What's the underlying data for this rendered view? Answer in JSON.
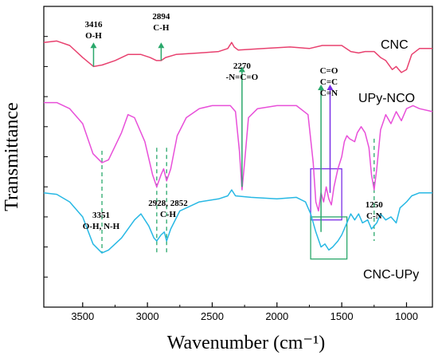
{
  "chart_data": {
    "type": "line",
    "title": "",
    "xlabel": "Wavenumber (cm⁻¹)",
    "ylabel": "Transmittance",
    "xlim": [
      3800,
      800
    ],
    "x_ticks": [
      3500,
      3000,
      2500,
      2000,
      1500,
      1000
    ],
    "ylim": [
      0,
      100
    ],
    "y_ticks_shown": false,
    "grid": false,
    "series": [
      {
        "name": "CNC",
        "color": "#e8416f",
        "points": [
          [
            3800,
            88
          ],
          [
            3700,
            88.5
          ],
          [
            3600,
            87
          ],
          [
            3500,
            83
          ],
          [
            3416,
            80
          ],
          [
            3350,
            80.5
          ],
          [
            3250,
            82
          ],
          [
            3150,
            84
          ],
          [
            3050,
            84
          ],
          [
            2980,
            83
          ],
          [
            2930,
            82
          ],
          [
            2894,
            82
          ],
          [
            2860,
            83
          ],
          [
            2780,
            84
          ],
          [
            2600,
            84.5
          ],
          [
            2450,
            85
          ],
          [
            2380,
            86
          ],
          [
            2350,
            88
          ],
          [
            2330,
            86.5
          ],
          [
            2300,
            85.5
          ],
          [
            2100,
            86
          ],
          [
            1900,
            86.5
          ],
          [
            1750,
            86
          ],
          [
            1650,
            87
          ],
          [
            1500,
            87
          ],
          [
            1430,
            85
          ],
          [
            1370,
            84.5
          ],
          [
            1320,
            85
          ],
          [
            1250,
            85
          ],
          [
            1200,
            83
          ],
          [
            1160,
            82
          ],
          [
            1110,
            79
          ],
          [
            1080,
            80
          ],
          [
            1040,
            78
          ],
          [
            1000,
            79
          ],
          [
            960,
            84
          ],
          [
            900,
            86
          ],
          [
            800,
            86
          ]
        ]
      },
      {
        "name": "UPy-NCO",
        "color": "#e84fd9",
        "points": [
          [
            3800,
            68
          ],
          [
            3700,
            68
          ],
          [
            3600,
            66
          ],
          [
            3500,
            61
          ],
          [
            3420,
            51
          ],
          [
            3351,
            48
          ],
          [
            3300,
            49
          ],
          [
            3200,
            58
          ],
          [
            3150,
            64
          ],
          [
            3100,
            63
          ],
          [
            3020,
            55
          ],
          [
            2960,
            44
          ],
          [
            2928,
            40
          ],
          [
            2895,
            44
          ],
          [
            2875,
            46
          ],
          [
            2852,
            42
          ],
          [
            2820,
            46
          ],
          [
            2770,
            57
          ],
          [
            2700,
            63
          ],
          [
            2600,
            66
          ],
          [
            2500,
            67
          ],
          [
            2420,
            67
          ],
          [
            2360,
            67
          ],
          [
            2320,
            65
          ],
          [
            2290,
            52
          ],
          [
            2270,
            39
          ],
          [
            2250,
            48
          ],
          [
            2220,
            63
          ],
          [
            2150,
            66
          ],
          [
            2000,
            67
          ],
          [
            1850,
            67
          ],
          [
            1760,
            64
          ],
          [
            1720,
            48
          ],
          [
            1700,
            35
          ],
          [
            1680,
            32
          ],
          [
            1660,
            38
          ],
          [
            1640,
            35
          ],
          [
            1620,
            40
          ],
          [
            1600,
            36
          ],
          [
            1580,
            34
          ],
          [
            1560,
            40
          ],
          [
            1530,
            46
          ],
          [
            1500,
            50
          ],
          [
            1480,
            55
          ],
          [
            1460,
            57
          ],
          [
            1440,
            56
          ],
          [
            1400,
            55
          ],
          [
            1380,
            58
          ],
          [
            1350,
            60
          ],
          [
            1320,
            58
          ],
          [
            1290,
            53
          ],
          [
            1270,
            44
          ],
          [
            1250,
            39
          ],
          [
            1230,
            46
          ],
          [
            1200,
            59
          ],
          [
            1160,
            64
          ],
          [
            1120,
            61
          ],
          [
            1080,
            65
          ],
          [
            1040,
            62
          ],
          [
            1000,
            66
          ],
          [
            950,
            67
          ],
          [
            900,
            66
          ],
          [
            800,
            65
          ]
        ]
      },
      {
        "name": "CNC-UPy",
        "color": "#27b8e4",
        "points": [
          [
            3800,
            38
          ],
          [
            3700,
            37.5
          ],
          [
            3600,
            35
          ],
          [
            3500,
            30
          ],
          [
            3420,
            21
          ],
          [
            3351,
            18
          ],
          [
            3300,
            19
          ],
          [
            3200,
            23
          ],
          [
            3100,
            29
          ],
          [
            3050,
            31
          ],
          [
            2990,
            27
          ],
          [
            2950,
            23
          ],
          [
            2928,
            22
          ],
          [
            2895,
            24
          ],
          [
            2870,
            25
          ],
          [
            2852,
            22
          ],
          [
            2820,
            26
          ],
          [
            2750,
            32
          ],
          [
            2600,
            35
          ],
          [
            2450,
            36
          ],
          [
            2380,
            37
          ],
          [
            2350,
            39
          ],
          [
            2320,
            37
          ],
          [
            2200,
            36.5
          ],
          [
            2000,
            36
          ],
          [
            1850,
            36.5
          ],
          [
            1780,
            35
          ],
          [
            1740,
            31
          ],
          [
            1700,
            25
          ],
          [
            1660,
            20
          ],
          [
            1630,
            21
          ],
          [
            1600,
            19
          ],
          [
            1570,
            20
          ],
          [
            1530,
            22
          ],
          [
            1500,
            24
          ],
          [
            1460,
            28
          ],
          [
            1430,
            31
          ],
          [
            1400,
            29
          ],
          [
            1370,
            31
          ],
          [
            1340,
            28
          ],
          [
            1300,
            29
          ],
          [
            1270,
            26
          ],
          [
            1250,
            27
          ],
          [
            1230,
            28
          ],
          [
            1200,
            31
          ],
          [
            1160,
            29
          ],
          [
            1120,
            30
          ],
          [
            1080,
            28
          ],
          [
            1050,
            33
          ],
          [
            1000,
            35
          ],
          [
            960,
            37
          ],
          [
            900,
            38
          ],
          [
            800,
            38
          ]
        ]
      }
    ],
    "annotations": [
      {
        "id": "cnc-3416",
        "lines": [
          "3416",
          "O-H"
        ],
        "x": 3416,
        "arrow_from": 80,
        "arrow_to": 88,
        "style": "arrow",
        "color": "#2aa86b"
      },
      {
        "id": "cnc-2894",
        "lines": [
          "2894",
          "C-H"
        ],
        "x": 2894,
        "arrow_from": 82,
        "arrow_to": 88,
        "style": "arrow",
        "color": "#2aa86b"
      },
      {
        "id": "nco-2270",
        "lines": [
          "2270",
          "-N=C=O"
        ],
        "x": 2270,
        "arrow_from": 40,
        "arrow_to": 80,
        "style": "arrow",
        "color": "#2aa86b"
      },
      {
        "id": "co-arrow",
        "lines": [
          "C=O",
          "C=C",
          "C=N"
        ],
        "x": 1660,
        "arrow_from": 25,
        "arrow_to": 74,
        "style": "arrow",
        "color": "#2aa86b"
      },
      {
        "id": "cn-arrow",
        "lines": [],
        "x": 1590,
        "arrow_from": 38,
        "arrow_to": 74,
        "style": "arrow",
        "color": "#7a2ee6"
      },
      {
        "id": "oh-nh-3351",
        "lines": [
          "3351",
          "O-H, N-H"
        ],
        "x": 3351,
        "style": "dashed"
      },
      {
        "id": "ch-2928-2852",
        "lines": [
          "2928, 2852",
          "C-H"
        ],
        "x": 2890,
        "style": "text"
      },
      {
        "id": "cn-1250",
        "lines": [
          "1250",
          "C-N"
        ],
        "x": 1250,
        "style": "text"
      }
    ],
    "dashed_lines": [
      {
        "x": 3351,
        "y_from": 52,
        "y_to": 18,
        "color": "#2aa86b"
      },
      {
        "x": 2928,
        "y_from": 53,
        "y_to": 18,
        "color": "#2aa86b"
      },
      {
        "x": 2852,
        "y_from": 53,
        "y_to": 18,
        "color": "#2aa86b"
      },
      {
        "x": 1250,
        "y_from": 56,
        "y_to": 22,
        "color": "#2aa86b"
      }
    ],
    "highlight_boxes": [
      {
        "x0": 1740,
        "x1": 1500,
        "y0": 29,
        "y1": 46,
        "color": "#7a2ee6"
      },
      {
        "x0": 1740,
        "x1": 1460,
        "y0": 16,
        "y1": 30,
        "color": "#2aa86b"
      }
    ]
  }
}
